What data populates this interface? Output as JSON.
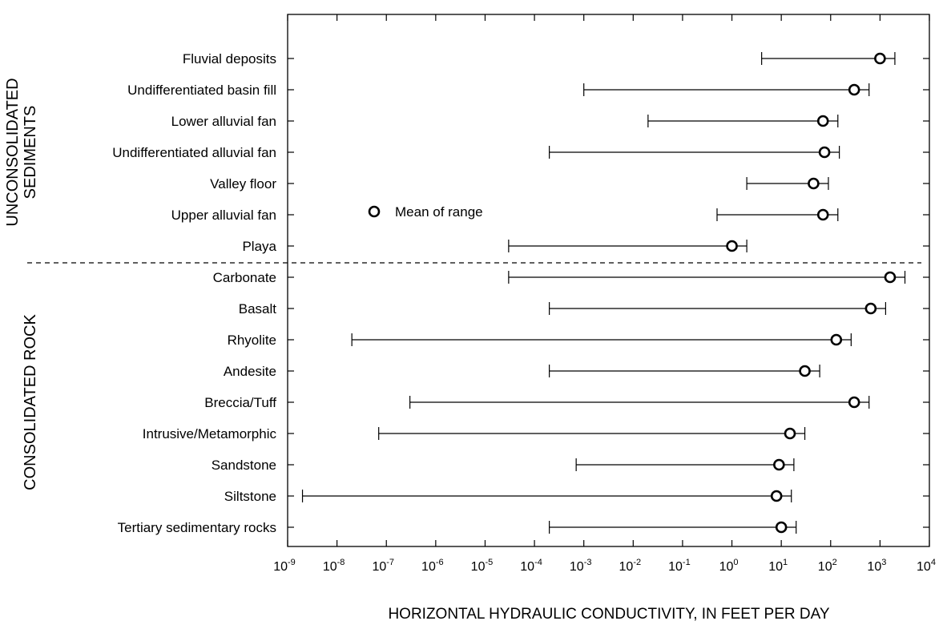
{
  "chart_data": {
    "type": "range",
    "xlabel": "HORIZONTAL HYDRAULIC CONDUCTIVITY, IN FEET PER DAY",
    "x_scale": "log",
    "xlim": [
      1e-09,
      10000.0
    ],
    "x_ticks": [
      {
        "base": "10",
        "exp": "-9",
        "value": 1e-09
      },
      {
        "base": "10",
        "exp": "-8",
        "value": 1e-08
      },
      {
        "base": "10",
        "exp": "-7",
        "value": 1e-07
      },
      {
        "base": "10",
        "exp": "-6",
        "value": 1e-06
      },
      {
        "base": "10",
        "exp": "-5",
        "value": 1e-05
      },
      {
        "base": "10",
        "exp": "-4",
        "value": 0.0001
      },
      {
        "base": "10",
        "exp": "-3",
        "value": 0.001
      },
      {
        "base": "10",
        "exp": "-2",
        "value": 0.01
      },
      {
        "base": "10",
        "exp": "-1",
        "value": 0.1
      },
      {
        "base": "10",
        "exp": "0",
        "value": 1
      },
      {
        "base": "10",
        "exp": "1",
        "value": 10
      },
      {
        "base": "10",
        "exp": "2",
        "value": 100
      },
      {
        "base": "10",
        "exp": "3",
        "value": 1000
      },
      {
        "base": "10",
        "exp": "4",
        "value": 10000
      }
    ],
    "legend": {
      "label": "Mean of range",
      "marker": "open-circle"
    },
    "groups": [
      {
        "name": "UNCONSOLIDATED SEDIMENTS",
        "name_lines": [
          "UNCONSOLIDATED",
          "SEDIMENTS"
        ],
        "items": [
          {
            "label": "Fluvial deposits",
            "min": 4,
            "max": 2000,
            "mean": 1000
          },
          {
            "label": "Undifferentiated basin fill",
            "min": 0.001,
            "max": 600,
            "mean": 300
          },
          {
            "label": "Lower alluvial fan",
            "min": 0.02,
            "max": 140,
            "mean": 70
          },
          {
            "label": "Undifferentiated alluvial fan",
            "min": 0.0002,
            "max": 150,
            "mean": 75
          },
          {
            "label": "Valley floor",
            "min": 2,
            "max": 90,
            "mean": 45
          },
          {
            "label": "Upper alluvial fan",
            "min": 0.5,
            "max": 140,
            "mean": 70
          },
          {
            "label": "Playa",
            "min": 3e-05,
            "max": 2,
            "mean": 1
          }
        ]
      },
      {
        "name": "CONSOLIDATED ROCK",
        "name_lines": [
          "CONSOLIDATED ROCK"
        ],
        "items": [
          {
            "label": "Carbonate",
            "min": 3e-05,
            "max": 3200,
            "mean": 1600
          },
          {
            "label": "Basalt",
            "min": 0.0002,
            "max": 1300,
            "mean": 650
          },
          {
            "label": "Rhyolite",
            "min": 2e-08,
            "max": 260,
            "mean": 130
          },
          {
            "label": "Andesite",
            "min": 0.0002,
            "max": 60,
            "mean": 30
          },
          {
            "label": "Breccia/Tuff",
            "min": 3e-07,
            "max": 600,
            "mean": 300
          },
          {
            "label": "Intrusive/Metamorphic",
            "min": 7e-08,
            "max": 30,
            "mean": 15
          },
          {
            "label": "Sandstone",
            "min": 0.0007,
            "max": 18,
            "mean": 9
          },
          {
            "label": "Siltstone",
            "min": 2e-09,
            "max": 16,
            "mean": 8
          },
          {
            "label": "Tertiary sedimentary rocks",
            "min": 0.0002,
            "max": 20,
            "mean": 10
          }
        ]
      }
    ]
  }
}
